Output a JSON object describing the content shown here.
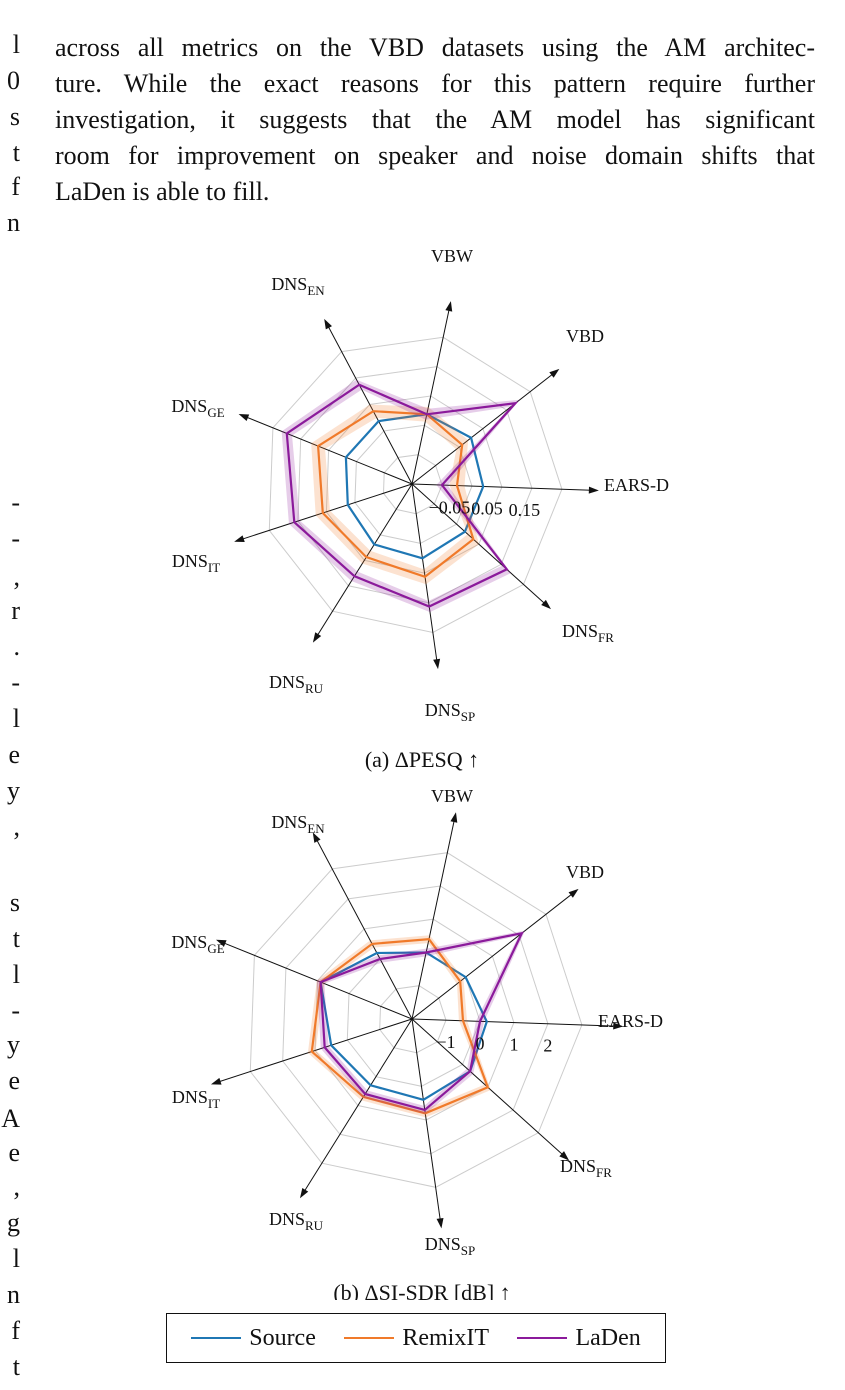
{
  "left_clip": [
    "l",
    "0",
    "s",
    "t",
    "f",
    "n",
    "-",
    "-",
    ",",
    "r",
    ".",
    "-",
    "l",
    "e",
    "y",
    ",",
    "s",
    "t",
    "l",
    "-",
    "y",
    "e",
    "A",
    "e",
    ",",
    "g",
    "l",
    "n",
    "f",
    "t"
  ],
  "paragraph": [
    "across all metrics on the VBD datasets using the AM architec-",
    "ture. While the exact reasons for this pattern require further",
    "investigation, it suggests that the AM model has significant",
    "room for improvement on speaker and noise domain shifts that",
    "LaDen is able to fill."
  ],
  "colors": {
    "Source": "#1f77b4",
    "RemixIT": "#f07a2a",
    "LaDen": "#8b1a9b",
    "grid": "#cccccc",
    "axis": "#111111"
  },
  "legend": [
    "Source",
    "RemixIT",
    "LaDen"
  ],
  "chart_data": [
    {
      "type": "radar",
      "caption": "(a) ΔPESQ ↑",
      "axes": [
        {
          "name": "EARS-D",
          "sub": ""
        },
        {
          "name": "VBD",
          "sub": ""
        },
        {
          "name": "VBW",
          "sub": ""
        },
        {
          "name": "DNS",
          "sub": "EN"
        },
        {
          "name": "DNS",
          "sub": "GE"
        },
        {
          "name": "DNS",
          "sub": "IT"
        },
        {
          "name": "DNS",
          "sub": "RU"
        },
        {
          "name": "DNS",
          "sub": "SP"
        },
        {
          "name": "DNS",
          "sub": "FR"
        }
      ],
      "rlim": [
        -0.15,
        0.25
      ],
      "ticks": [
        "−0.05",
        "0.05",
        "0.15"
      ],
      "tick_values": [
        -0.05,
        0.05,
        0.15
      ],
      "series": [
        {
          "name": "Source",
          "values": [
            0.04,
            0.05,
            0.04,
            0.04,
            0.04,
            0.03,
            0.04,
            0.05,
            0.04
          ],
          "band": 0
        },
        {
          "name": "RemixIT",
          "values": [
            -0.03,
            0.02,
            0.04,
            0.07,
            0.12,
            0.1,
            0.08,
            0.1,
            0.07
          ],
          "band": 0.02
        },
        {
          "name": "LaDen",
          "values": [
            -0.07,
            0.2,
            0.04,
            0.15,
            0.21,
            0.18,
            0.14,
            0.18,
            0.19
          ],
          "band": 0.015
        }
      ]
    },
    {
      "type": "radar",
      "caption": "(b) ΔSI-SDR [dB] ↑",
      "axes": [
        {
          "name": "EARS-D",
          "sub": ""
        },
        {
          "name": "VBD",
          "sub": ""
        },
        {
          "name": "VBW",
          "sub": ""
        },
        {
          "name": "DNS",
          "sub": "EN"
        },
        {
          "name": "DNS",
          "sub": "GE"
        },
        {
          "name": "DNS",
          "sub": "IT"
        },
        {
          "name": "DNS",
          "sub": "RU"
        },
        {
          "name": "DNS",
          "sub": "SP"
        },
        {
          "name": "DNS",
          "sub": "FR"
        }
      ],
      "rlim": [
        -2,
        3
      ],
      "ticks": [
        "−1",
        "0",
        "1",
        "2"
      ],
      "tick_values": [
        -1,
        0,
        1,
        2
      ],
      "series": [
        {
          "name": "Source",
          "values": [
            0.2,
            0.0,
            0.0,
            0.2,
            0.9,
            0.5,
            0.3,
            0.4,
            0.3
          ],
          "band": 0
        },
        {
          "name": "RemixIT",
          "values": [
            -0.5,
            -0.2,
            0.4,
            0.5,
            0.9,
            1.1,
            0.7,
            0.8,
            1.0
          ],
          "band": 0.12
        },
        {
          "name": "LaDen",
          "values": [
            0.0,
            2.1,
            0.0,
            0.0,
            0.9,
            0.7,
            0.6,
            0.7,
            0.3
          ],
          "band": 0.12
        }
      ]
    }
  ]
}
